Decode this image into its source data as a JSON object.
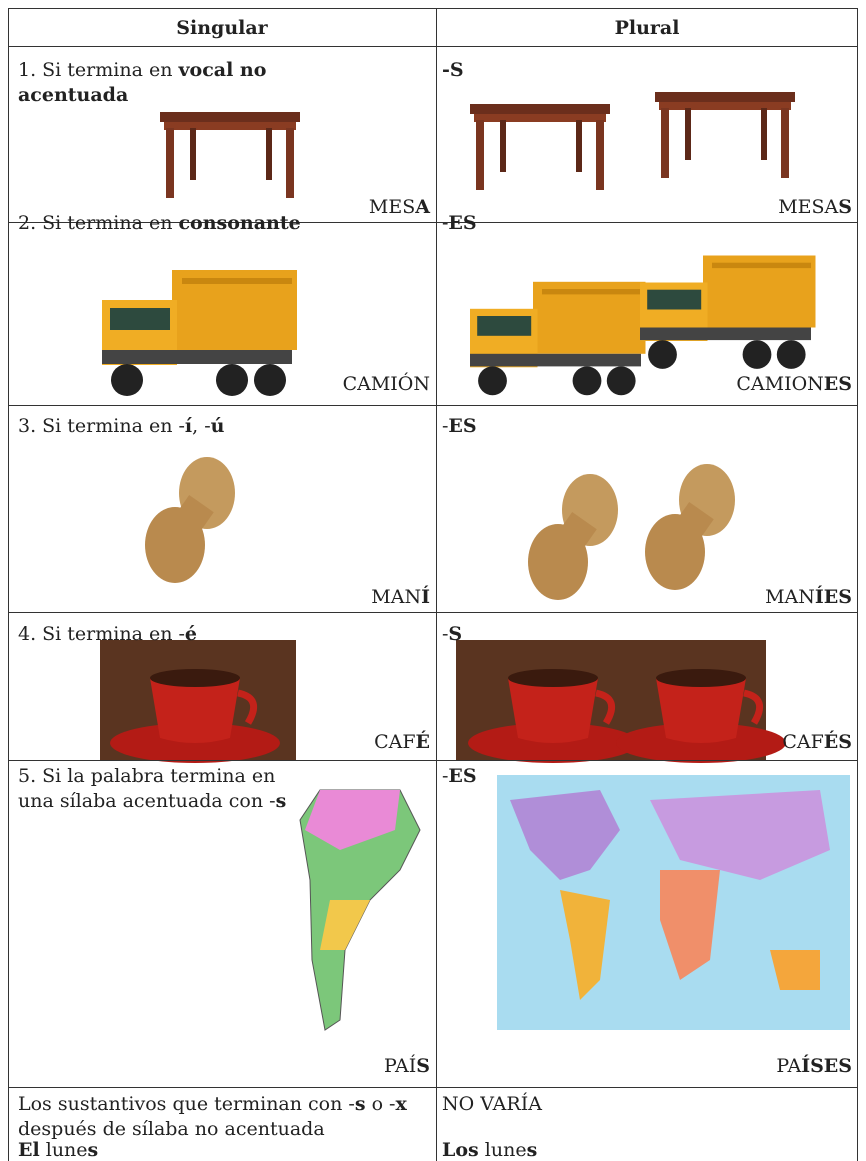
{
  "table": {
    "header": [
      "Singular",
      "Plural"
    ],
    "rows": [
      {
        "left": {
          "rule": [
            {
              "t": "1. Si termina en "
            },
            {
              "t": "vocal no acentuada",
              "b": true
            }
          ],
          "word": [
            {
              "t": "MES"
            },
            {
              "t": "A",
              "b": true
            }
          ]
        },
        "right": {
          "rule": [
            {
              "t": "-S",
              "b": true
            }
          ],
          "word": [
            {
              "t": "MESA"
            },
            {
              "t": "S",
              "b": true
            }
          ]
        }
      },
      {
        "left": {
          "rule": [
            {
              "t": "2. Si termina en "
            },
            {
              "t": "consonante",
              "b": true
            }
          ],
          "word": [
            {
              "t": "CAMIÓN"
            }
          ]
        },
        "right": {
          "rule": [
            {
              "t": "-"
            },
            {
              "t": "ES",
              "b": true
            }
          ],
          "word": [
            {
              "t": "CAMION"
            },
            {
              "t": "ES",
              "b": true
            }
          ]
        }
      },
      {
        "left": {
          "rule": [
            {
              "t": "3. Si termina en -"
            },
            {
              "t": "í",
              "b": true
            },
            {
              "t": ", -"
            },
            {
              "t": "ú",
              "b": true
            }
          ],
          "word": [
            {
              "t": "MAN"
            },
            {
              "t": "Í",
              "b": true
            }
          ]
        },
        "right": {
          "rule": [
            {
              "t": "-"
            },
            {
              "t": "ES",
              "b": true
            }
          ],
          "word": [
            {
              "t": "MAN"
            },
            {
              "t": "ÍES",
              "b": true
            }
          ]
        }
      },
      {
        "left": {
          "rule": [
            {
              "t": "4. Si termina en -"
            },
            {
              "t": "é",
              "b": true
            }
          ],
          "word": [
            {
              "t": "CAF"
            },
            {
              "t": "É",
              "b": true
            }
          ]
        },
        "right": {
          "rule": [
            {
              "t": "-"
            },
            {
              "t": "S",
              "b": true
            }
          ],
          "word": [
            {
              "t": "CAF"
            },
            {
              "t": "ÉS",
              "b": true
            }
          ]
        }
      },
      {
        "left": {
          "rule": [
            {
              "t": "5. Si la palabra termina en una sílaba acentuada con -"
            },
            {
              "t": "s",
              "b": true
            }
          ],
          "word": [
            {
              "t": "PAÍ"
            },
            {
              "t": "S",
              "b": true
            }
          ]
        },
        "right": {
          "rule": [
            {
              "t": "-"
            },
            {
              "t": "ES",
              "b": true
            }
          ],
          "word": [
            {
              "t": "PA"
            },
            {
              "t": "ÍSES",
              "b": true
            }
          ]
        }
      },
      {
        "left": {
          "rule": [
            {
              "t": "Los sustantivos que terminan con -"
            },
            {
              "t": "s",
              "b": true
            },
            {
              "t": " o -"
            },
            {
              "t": "x",
              "b": true
            },
            {
              "t": " después de sílaba no acentuada"
            }
          ],
          "example": [
            {
              "t": "El",
              "b": true
            },
            {
              "t": " lune"
            },
            {
              "t": "s",
              "b": true
            }
          ]
        },
        "right": {
          "rule": [
            {
              "t": "NO VARÍA"
            }
          ],
          "example": [
            {
              "t": "Los",
              "b": true
            },
            {
              "t": " lune"
            },
            {
              "t": "s",
              "b": true
            }
          ]
        }
      }
    ]
  }
}
